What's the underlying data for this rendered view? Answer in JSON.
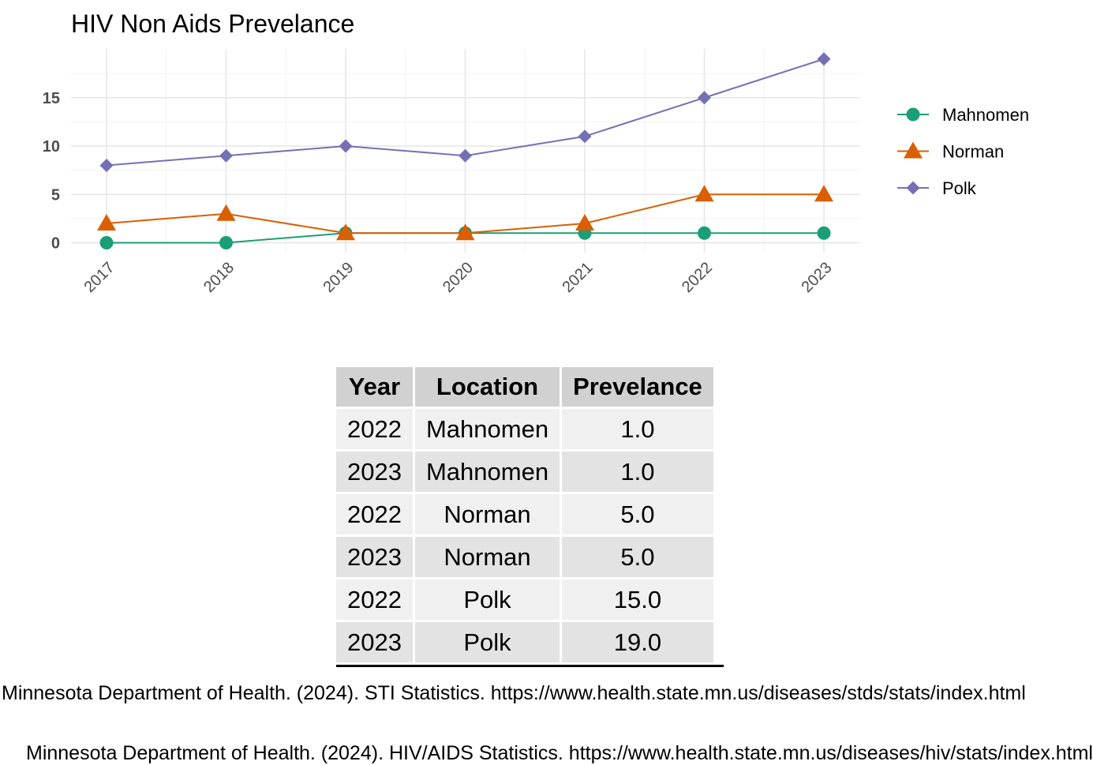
{
  "chart_data": {
    "type": "line",
    "title": "HIV Non Aids Prevelance",
    "xlabel": "",
    "ylabel": "",
    "x": [
      2017,
      2018,
      2019,
      2020,
      2021,
      2022,
      2023
    ],
    "x_tick_labels": [
      "2017",
      "2018",
      "2019",
      "2020",
      "2021",
      "2022",
      "2023"
    ],
    "y_ticks": [
      0,
      5,
      10,
      15
    ],
    "y_tick_labels": [
      "0",
      "5",
      "10",
      "15"
    ],
    "ylim": [
      -1,
      19.8
    ],
    "grid": true,
    "legend_position": "right",
    "series": [
      {
        "name": "Mahnomen",
        "marker": "circle",
        "color": "#1b9e77",
        "values": [
          0,
          0,
          1,
          1,
          1,
          1,
          1
        ]
      },
      {
        "name": "Norman",
        "marker": "triangle",
        "color": "#d95f02",
        "values": [
          2,
          3,
          1,
          1,
          2,
          5,
          5
        ]
      },
      {
        "name": "Polk",
        "marker": "diamond",
        "color": "#7570b3",
        "values": [
          8,
          9,
          10,
          9,
          11,
          15,
          19
        ]
      }
    ]
  },
  "table": {
    "headers": [
      "Year",
      "Location",
      "Prevelance"
    ],
    "rows": [
      [
        "2022",
        "Mahnomen",
        "1.0"
      ],
      [
        "2023",
        "Mahnomen",
        "1.0"
      ],
      [
        "2022",
        "Norman",
        "5.0"
      ],
      [
        "2023",
        "Norman",
        "5.0"
      ],
      [
        "2022",
        "Polk",
        "15.0"
      ],
      [
        "2023",
        "Polk",
        "19.0"
      ]
    ]
  },
  "footnotes": [
    "Minnesota Department of Health. (2024). STI Statistics. https://www.health.state.mn.us/diseases/stds/stats/index.html",
    "Minnesota Department of Health. (2024). HIV/AIDS Statistics. https://www.health.state.mn.us/diseases/hiv/stats/index.html"
  ]
}
